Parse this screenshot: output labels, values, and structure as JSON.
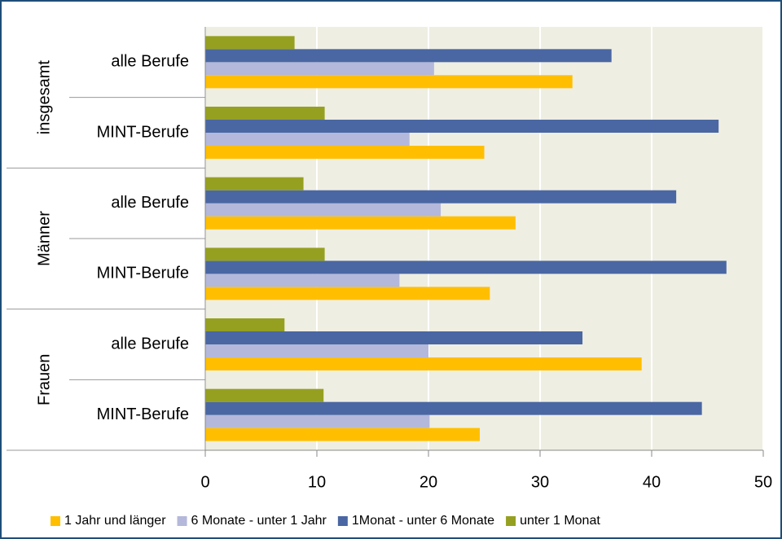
{
  "chart_data": {
    "type": "bar",
    "orientation": "horizontal",
    "groups": [
      "insgesamt",
      "Männer",
      "Frauen"
    ],
    "categories": [
      "alle Berufe",
      "MINT-Berufe",
      "alle Berufe",
      "MINT-Berufe",
      "alle Berufe",
      "MINT-Berufe"
    ],
    "series": [
      {
        "name": "1 Jahr und länger",
        "color": "#ffbf00",
        "values": [
          32.9,
          25.0,
          27.8,
          25.5,
          39.1,
          24.6
        ]
      },
      {
        "name": "6 Monate - unter 1 Jahr",
        "color": "#b4b8da",
        "values": [
          20.5,
          18.3,
          21.1,
          17.4,
          20.0,
          20.1
        ]
      },
      {
        "name": "1Monat - unter 6 Monate",
        "color": "#4a67a3",
        "values": [
          36.4,
          46.0,
          42.2,
          46.7,
          33.8,
          44.5
        ]
      },
      {
        "name": "unter 1 Monat",
        "color": "#95a021",
        "values": [
          8.0,
          10.7,
          8.8,
          10.7,
          7.1,
          10.6
        ]
      }
    ],
    "xlim": [
      0,
      50
    ],
    "xticks": [
      0,
      10,
      20,
      30,
      40,
      50
    ],
    "grid": true,
    "legend": "bottom"
  }
}
